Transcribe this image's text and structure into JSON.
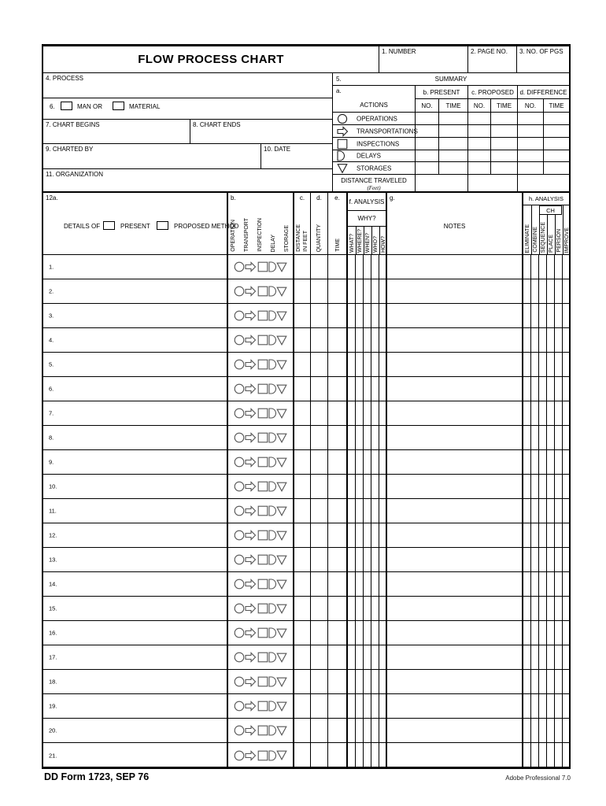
{
  "form": {
    "title": "FLOW PROCESS CHART",
    "header": {
      "number_label": "1.  NUMBER",
      "page_no_label": "2.  PAGE NO.",
      "no_of_pgs_label": "3.  NO. OF PGS"
    },
    "process_label": "4.  PROCESS",
    "man_material": {
      "number": "6.",
      "man_label": "MAN OR",
      "material_label": "MATERIAL"
    },
    "chart_begins_label": "7.  CHART BEGINS",
    "chart_ends_label": "8.  CHART ENDS",
    "charted_by_label": "9.  CHARTED BY",
    "date_label": "10.  DATE",
    "organization_label": "11.  ORGANIZATION",
    "summary": {
      "number": "5.",
      "title": "SUMMARY",
      "a_label": "a.",
      "actions_label": "ACTIONS",
      "present_label": "b.  PRESENT",
      "proposed_label": "c.  PROPOSED",
      "difference_label": "d.  DIFFERENCE",
      "no_label": "NO.",
      "time_label": "TIME",
      "rows": [
        {
          "icon": "operation-circle-icon",
          "label": "OPERATIONS"
        },
        {
          "icon": "transport-arrow-icon",
          "label": "TRANSPORTATIONS"
        },
        {
          "icon": "inspection-square-icon",
          "label": "INSPECTIONS"
        },
        {
          "icon": "delay-d-icon",
          "label": "DELAYS"
        },
        {
          "icon": "storage-triangle-icon",
          "label": "STORAGES"
        }
      ],
      "distance_label": "DISTANCE TRAVELED",
      "distance_unit": "(Feet)"
    },
    "details": {
      "number": "12a.",
      "details_of_label": "DETAILS OF",
      "present_label": "PRESENT",
      "proposed_method_label": "PROPOSED METHOD",
      "b_label": "b.",
      "c_label": "c.",
      "d_label": "d.",
      "e_label": "e.",
      "f_label": "f.  ANALYSIS",
      "g_label": "g.",
      "h_label": "h.  ANALYSIS",
      "why_label": "WHY?",
      "ch_label": "CH",
      "notes_label": "NOTES",
      "symbol_columns": [
        "OPERATION",
        "TRANSPORT",
        "INSPECTION",
        "DELAY",
        "STORAGE"
      ],
      "distance_line1": "DISTANCE",
      "distance_line2": "IN  FEET",
      "quantity_label": "QUANTITY",
      "time_label": "TIME",
      "why_columns": [
        "WHAT?",
        "WHERE?",
        "WHEN?",
        "WHO?",
        "HOW?"
      ],
      "h_columns": [
        "ELIMINATE",
        "COMBINE",
        "SEQUENCE",
        "PLACE",
        "PERSON",
        "IMPROVE"
      ],
      "row_numbers": [
        "1.",
        "2.",
        "3.",
        "4.",
        "5.",
        "6.",
        "7.",
        "8.",
        "9.",
        "10.",
        "11.",
        "12.",
        "13.",
        "14.",
        "15.",
        "16.",
        "17.",
        "18.",
        "19.",
        "20.",
        "21."
      ]
    },
    "footer": {
      "form_id": "DD Form 1723, SEP 76",
      "software": "Adobe Professional 7.0"
    }
  }
}
